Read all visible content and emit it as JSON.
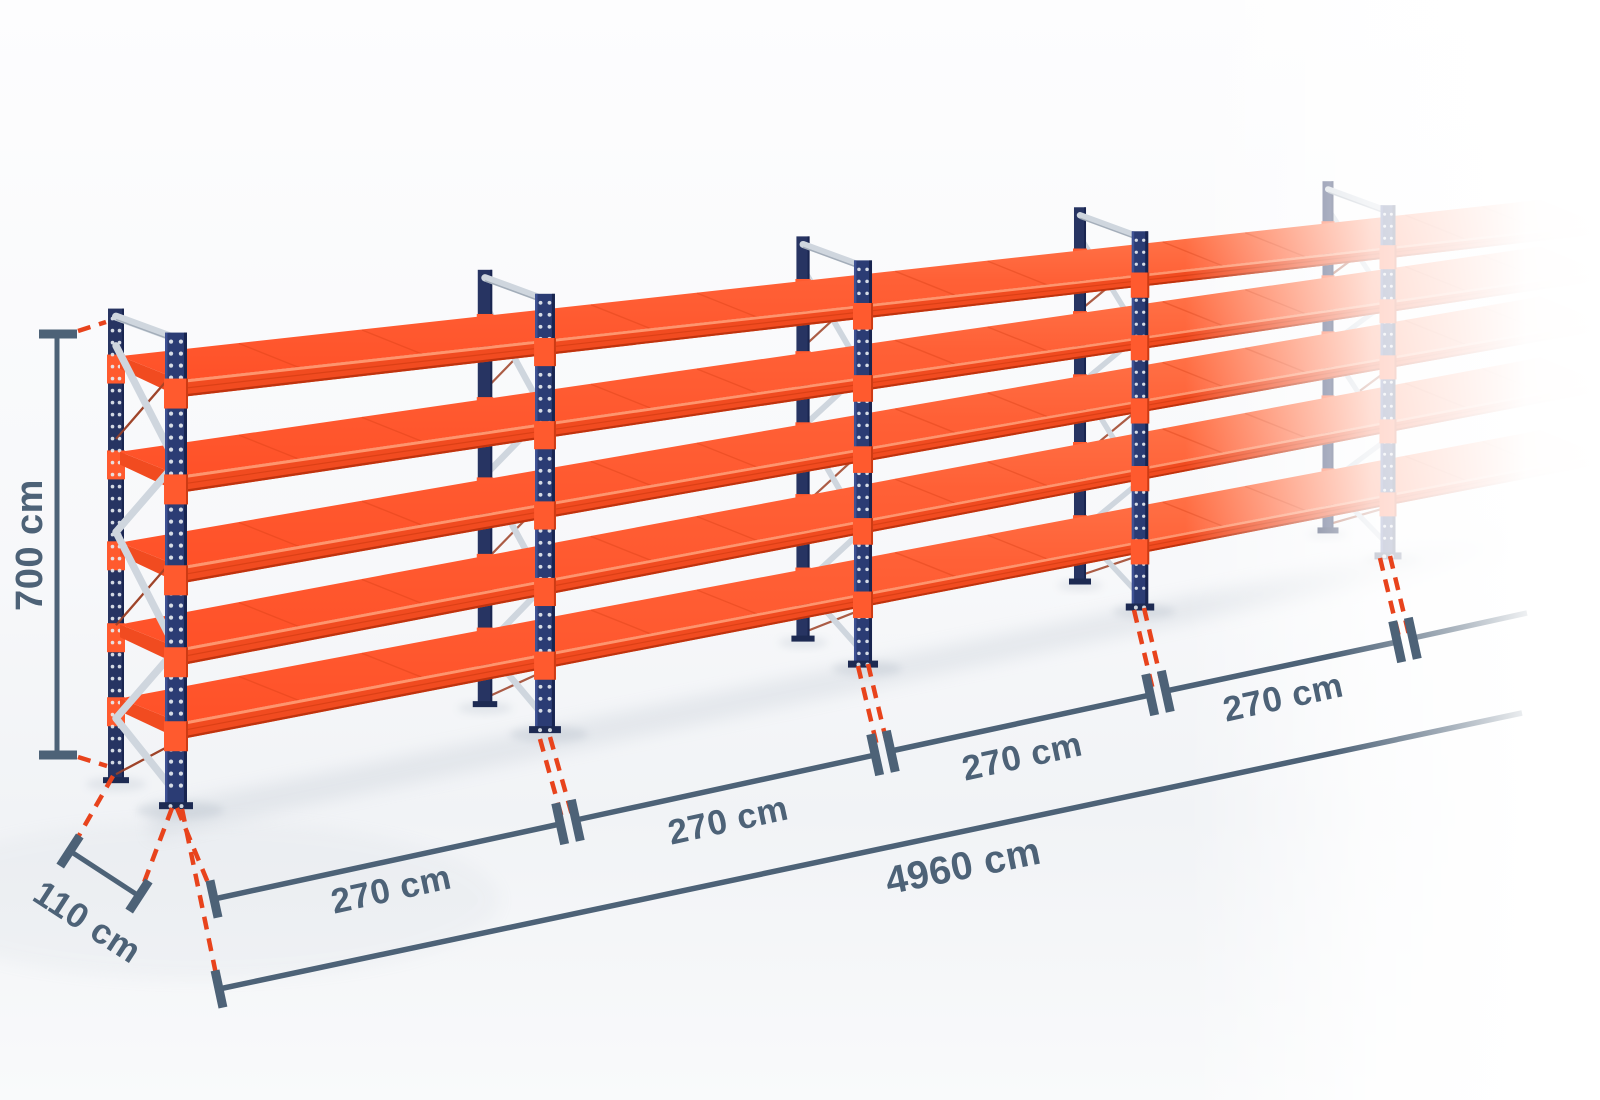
{
  "diagram": {
    "title": "Long-span shelving run with dimension annotations",
    "view": "isometric product illustration, rack fades out to the right"
  },
  "rack": {
    "shelf_levels": 5,
    "upright_frames": 5,
    "labeled_bays": 4,
    "continues_beyond_view": true
  },
  "dimensions": {
    "height": {
      "label": "700 cm"
    },
    "depth": {
      "label": "110 cm"
    },
    "bays": [
      {
        "label": "270 cm"
      },
      {
        "label": "270 cm"
      },
      {
        "label": "270 cm"
      },
      {
        "label": "270 cm"
      }
    ],
    "total": {
      "label": "4960 cm"
    }
  },
  "colors": {
    "shelf_orange": "#ff5f35",
    "shelf_orange_deep": "#f14b20",
    "shelf_highlight": "#ff9d77",
    "shelf_edge_dark": "#c0330e",
    "shelf_seam": "#d43c12",
    "upright_navy": "#2b3c74",
    "upright_navy_dark": "#16224c",
    "upright_navy_light": "#46589e",
    "upright_rear_navy": "#273462",
    "base_plate_navy": "#1d2a52",
    "beam_connector_orange": "#ff5a2e",
    "brace_silver": "#cfd6de",
    "brace_silver_shade": "#99a4b1",
    "brace_rod_red": "#9e4126",
    "dimension_slate": "#4d6277",
    "guide_dash_orange": "#e8431c",
    "ground_shadow": "#a7b2bf",
    "background_top": "#fdfdfe",
    "background_floor": "#f1f3f6"
  }
}
